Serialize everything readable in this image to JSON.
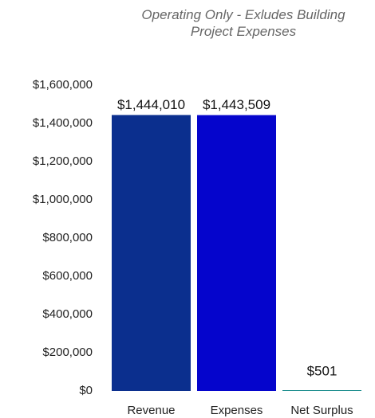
{
  "chart_data": {
    "type": "bar",
    "title": "Operating Only - Exludes Building Project Expenses",
    "categories": [
      "Revenue",
      "Expenses",
      "Net Surplus"
    ],
    "values": [
      1444010,
      1443509,
      501
    ],
    "value_labels": [
      "$1,444,010",
      "$1,443,509",
      "$501"
    ],
    "colors": [
      "#0b2f8e",
      "#0505cc",
      "#1a8c8c"
    ],
    "ylim": [
      0,
      1600000
    ],
    "yticks": [
      {
        "value": 0,
        "label": "$0"
      },
      {
        "value": 200000,
        "label": "$200,000"
      },
      {
        "value": 400000,
        "label": "$400,000"
      },
      {
        "value": 600000,
        "label": "$600,000"
      },
      {
        "value": 800000,
        "label": "$800,000"
      },
      {
        "value": 1000000,
        "label": "$1,000,000"
      },
      {
        "value": 1200000,
        "label": "$1,200,000"
      },
      {
        "value": 1400000,
        "label": "$1,400,000"
      },
      {
        "value": 1600000,
        "label": "$1,600,000"
      }
    ],
    "grid": false
  }
}
